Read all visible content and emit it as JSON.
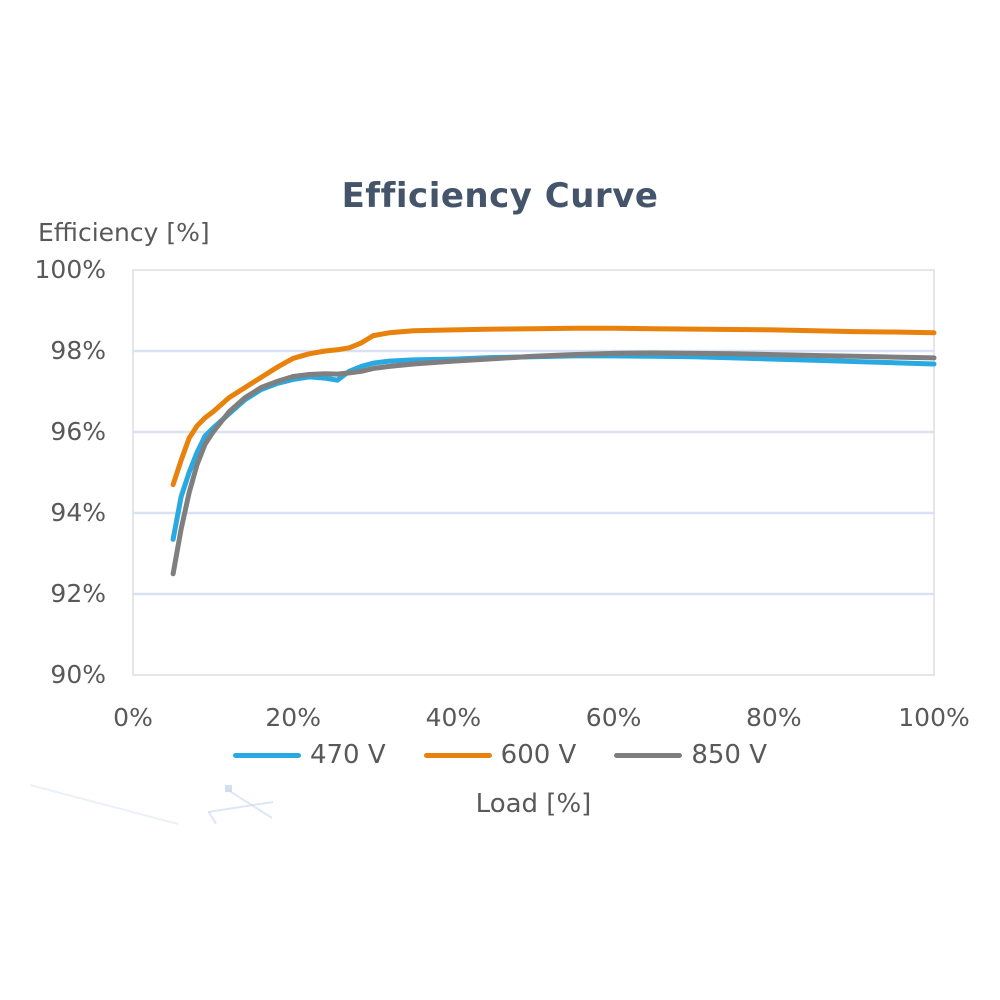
{
  "chart": {
    "title": "Efficiency Curve",
    "xlabel": "Load [%]",
    "ylabel": "Efficiency [%]"
  },
  "colors": {
    "title_text": "#44546A",
    "axis_text": "#595959",
    "gridline": "#D9E1F2",
    "plot_border": "#E4E6EA",
    "artifact": "#C9D6EC"
  },
  "chart_data": {
    "type": "line",
    "title": "Efficiency Curve",
    "xlabel": "Load [%]",
    "ylabel": "Efficiency [%]",
    "xlim": [
      0,
      100
    ],
    "ylim": [
      90,
      100
    ],
    "x_ticks": [
      "0%",
      "20%",
      "40%",
      "60%",
      "80%",
      "100%"
    ],
    "x_tick_values": [
      0,
      20,
      40,
      60,
      80,
      100
    ],
    "y_ticks": [
      "100%",
      "98%",
      "96%",
      "94%",
      "92%",
      "90%"
    ],
    "y_tick_values": [
      100,
      98,
      96,
      94,
      92,
      90
    ],
    "grid": "horizontal",
    "legend_position": "bottom",
    "x": [
      5,
      6,
      7,
      8,
      9,
      10,
      12,
      14,
      16,
      18,
      20,
      22,
      24,
      25.5,
      27,
      28.5,
      30,
      32,
      35,
      40,
      45,
      50,
      55,
      60,
      65,
      70,
      75,
      80,
      85,
      90,
      95,
      100
    ],
    "series": [
      {
        "name": "470 V",
        "color": "#29A9E1",
        "values": [
          93.35,
          94.4,
          95.0,
          95.5,
          95.9,
          96.1,
          96.45,
          96.8,
          97.05,
          97.2,
          97.3,
          97.36,
          97.33,
          97.28,
          97.5,
          97.62,
          97.7,
          97.75,
          97.78,
          97.8,
          97.84,
          97.86,
          97.88,
          97.88,
          97.87,
          97.86,
          97.83,
          97.8,
          97.77,
          97.74,
          97.71,
          97.68
        ]
      },
      {
        "name": "600 V",
        "color": "#E8820D",
        "values": [
          94.7,
          95.3,
          95.85,
          96.15,
          96.35,
          96.5,
          96.85,
          97.1,
          97.35,
          97.6,
          97.82,
          97.93,
          98.0,
          98.03,
          98.08,
          98.2,
          98.38,
          98.45,
          98.5,
          98.52,
          98.54,
          98.55,
          98.56,
          98.56,
          98.55,
          98.54,
          98.53,
          98.52,
          98.5,
          98.48,
          98.47,
          98.45
        ]
      },
      {
        "name": "850 V",
        "color": "#7F7F7F",
        "values": [
          92.5,
          93.6,
          94.5,
          95.2,
          95.7,
          96.0,
          96.5,
          96.85,
          97.1,
          97.25,
          97.37,
          97.42,
          97.44,
          97.43,
          97.46,
          97.5,
          97.57,
          97.62,
          97.68,
          97.75,
          97.81,
          97.87,
          97.91,
          97.94,
          97.95,
          97.94,
          97.93,
          97.91,
          97.89,
          97.87,
          97.85,
          97.83
        ]
      }
    ]
  }
}
